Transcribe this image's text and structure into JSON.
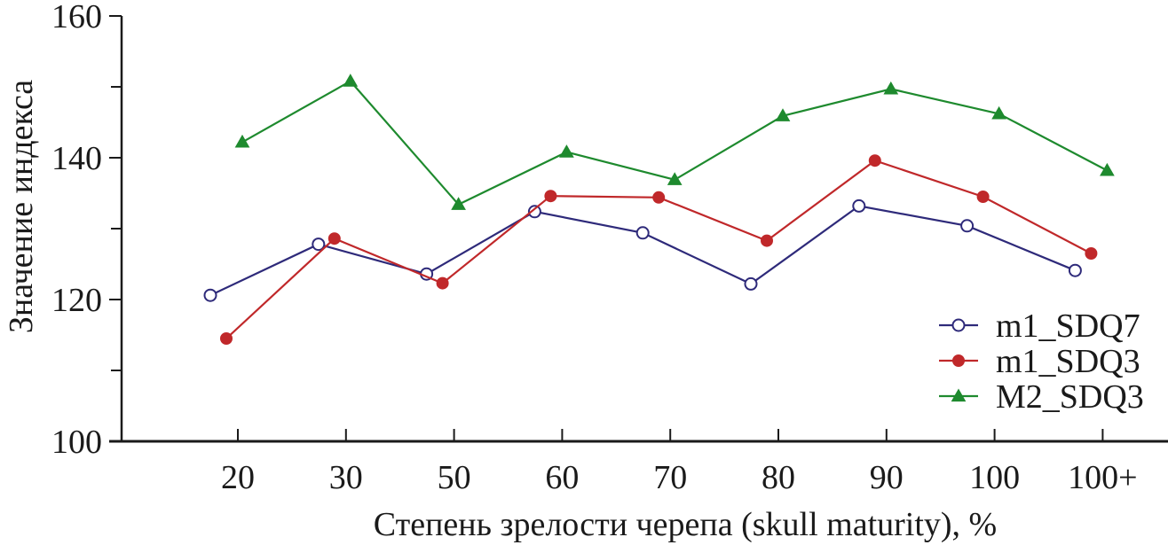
{
  "chart_data": {
    "type": "line",
    "title": "",
    "xlabel": "Степень зрелости черепа (skull maturity), %",
    "ylabel": "Значение индекса",
    "categories": [
      "20",
      "30",
      "50",
      "60",
      "70",
      "80",
      "90",
      "100",
      "100+"
    ],
    "ylim": [
      100,
      160
    ],
    "yticks": [
      100,
      120,
      140,
      160
    ],
    "grid": false,
    "legend_position": "right",
    "series": [
      {
        "name": "m1_SDQ7",
        "marker": "open-circle",
        "color": "#2e2a7a",
        "values": [
          120.6,
          127.8,
          123.6,
          132.4,
          129.4,
          122.2,
          133.2,
          130.4,
          124.1
        ]
      },
      {
        "name": "m1_SDQ3",
        "marker": "filled-circle",
        "color": "#c0282a",
        "values": [
          114.5,
          128.6,
          122.3,
          134.6,
          134.4,
          128.3,
          139.6,
          134.5,
          126.5
        ]
      },
      {
        "name": "M2_SDQ3",
        "marker": "filled-triangle",
        "color": "#1e8a2e",
        "values": [
          142.2,
          150.8,
          133.4,
          140.8,
          136.9,
          145.9,
          149.7,
          146.2,
          138.2
        ]
      }
    ]
  }
}
